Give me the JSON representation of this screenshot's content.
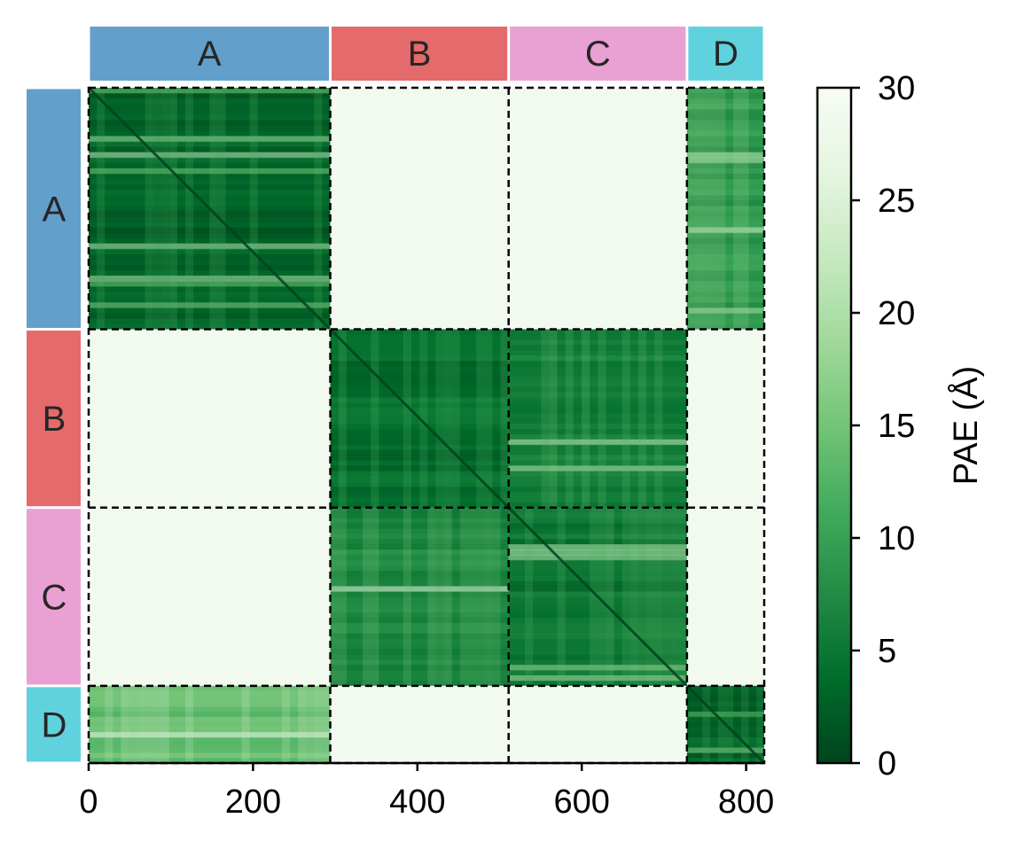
{
  "chart_data": {
    "type": "heatmap",
    "title": "",
    "xlabel": "",
    "ylabel": "",
    "colormap": "Greens_r",
    "total_residues": 822,
    "xlim": [
      0,
      822
    ],
    "xticks": [
      0,
      200,
      400,
      600,
      800
    ],
    "chains": [
      {
        "id": "A",
        "start": 0,
        "end": 294,
        "color": "#62a0cb"
      },
      {
        "id": "B",
        "start": 294,
        "end": 511,
        "color": "#e46a6b"
      },
      {
        "id": "C",
        "start": 511,
        "end": 728,
        "color": "#e9a0d2"
      },
      {
        "id": "D",
        "start": 728,
        "end": 822,
        "color": "#5fd2de"
      }
    ],
    "block_mean_pae": [
      [
        3,
        29,
        29,
        9
      ],
      [
        29,
        4,
        6,
        29
      ],
      [
        29,
        7,
        5,
        29
      ],
      [
        14,
        29,
        29,
        3
      ]
    ],
    "colorbar": {
      "label": "PAE (Å)",
      "range": [
        0,
        30
      ],
      "ticks": [
        0,
        5,
        10,
        15,
        20,
        25,
        30
      ]
    },
    "block_separators": "dashed black lines at chain boundaries"
  }
}
